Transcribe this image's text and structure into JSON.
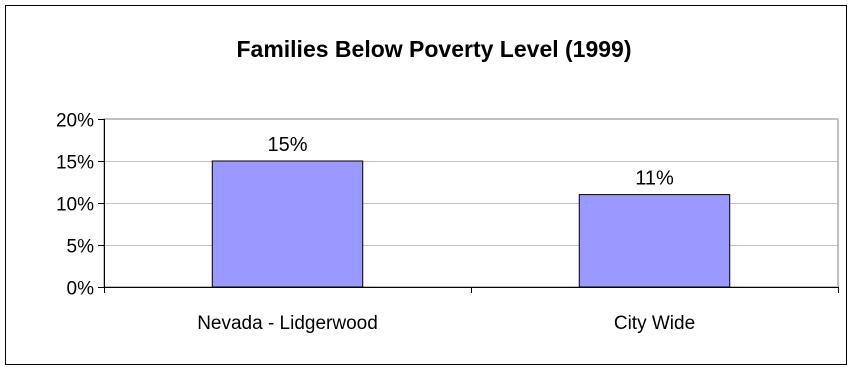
{
  "chart_data": {
    "type": "bar",
    "title": "Families Below Poverty Level (1999)",
    "xlabel": "",
    "ylabel": "",
    "categories": [
      "Nevada - Lidgerwood",
      "City Wide"
    ],
    "values": [
      0.15,
      0.11
    ],
    "data_labels": [
      "15%",
      "11%"
    ],
    "ylim": [
      0,
      0.2
    ],
    "yticks": [
      0,
      0.05,
      0.1,
      0.15,
      0.2
    ],
    "ytick_labels": [
      "0%",
      "5%",
      "10%",
      "15%",
      "20%"
    ],
    "grid": true,
    "legend": "none",
    "colors": {
      "bar_fill": "#9999ff",
      "bar_stroke": "#000000",
      "gridline": "#c0c0c0",
      "axis": "#808080"
    }
  }
}
